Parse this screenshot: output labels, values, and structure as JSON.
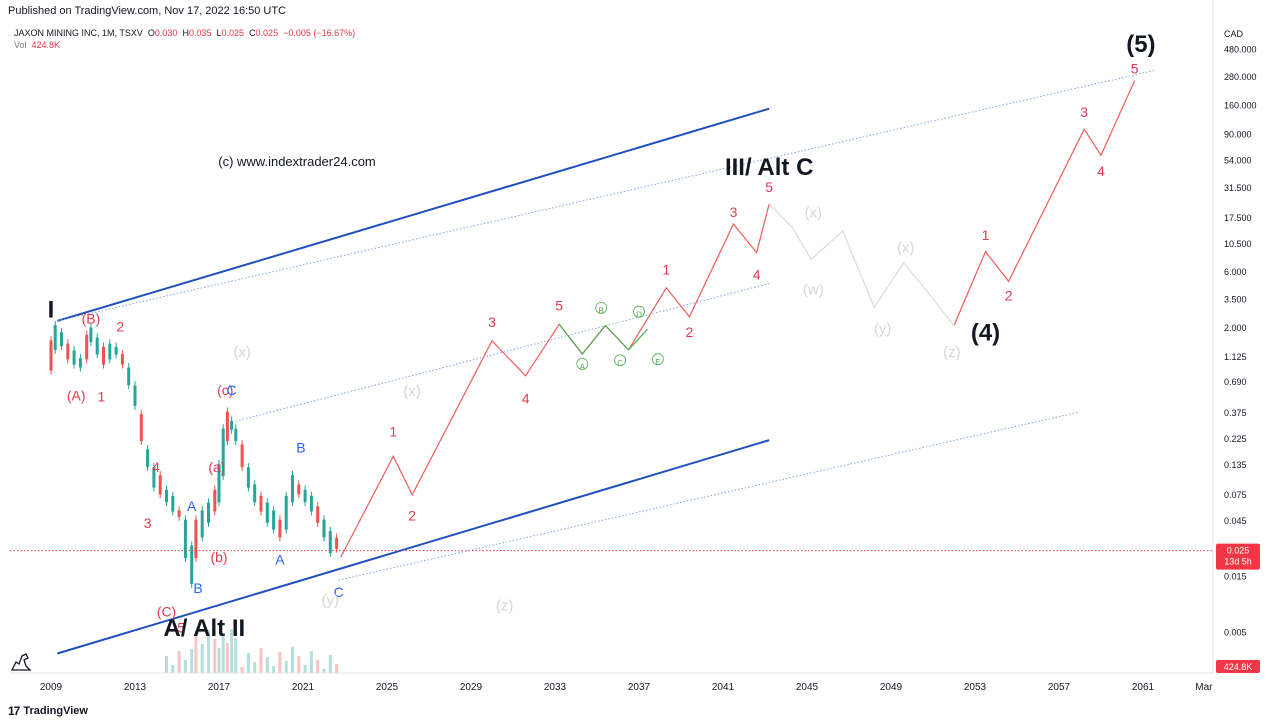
{
  "header": {
    "published": "Published on TradingView.com, Nov 17, 2022 16:50 UTC"
  },
  "legend": {
    "symbol": "JAXON MINING INC, 1M, TSXV",
    "o_label": "O",
    "o_value": "0.030",
    "h_label": "H",
    "h_value": "0.035",
    "l_label": "L",
    "l_value": "0.025",
    "c_label": "C",
    "c_value": "0.025",
    "change": "−0.005 (−16.67%)",
    "vol_label": "Vol",
    "vol_value": "424.8K"
  },
  "watermark": "(c) www.indextrader24.com",
  "footer": {
    "logo": "17",
    "brand": "TradingView"
  },
  "colors": {
    "channel": "#1e4fbf",
    "channel_dotted": "#7ea3e6",
    "projection": "#f05b5b",
    "triangle": "#4caf50",
    "wxy": "#dadada",
    "wave_red": "#e53950",
    "wave_blue": "#2962ff",
    "candle_up": "#26a69a",
    "candle_down": "#ef5350",
    "price_line": "#e53950"
  },
  "chart_data": {
    "type": "line",
    "title": "JAXON MINING INC, 1M, TSXV",
    "currency": "CAD",
    "scale": "log",
    "ylim": [
      0.0035,
      600
    ],
    "y_ticks": [
      "480.000",
      "280.000",
      "160.000",
      "90.000",
      "54.000",
      "31.500",
      "17.500",
      "10.500",
      "6.000",
      "3.500",
      "2.000",
      "1.125",
      "0.690",
      "0.375",
      "0.225",
      "0.135",
      "0.075",
      "0.045",
      "0.015",
      "0.005"
    ],
    "x_ticks": [
      "2009",
      "2013",
      "2017",
      "2021",
      "2025",
      "2029",
      "2033",
      "2037",
      "2041",
      "2045",
      "2049",
      "2053",
      "2057",
      "2061",
      "Mar"
    ],
    "xlim": [
      2009,
      2064
    ],
    "last_price": "0.025",
    "last_price_countdown": "13d 5h",
    "volume_label": "424.8K",
    "series": [
      {
        "name": "",
        "style": "projection",
        "x": [
          2022.8,
          2025.3,
          2026.2,
          2030.0,
          2031.6,
          2033.2,
          2034.3,
          2035.4,
          2036.5,
          2038.3,
          2039.4,
          2041.5,
          2042.6,
          2043.2
        ],
        "y": [
          0.022,
          0.16,
          0.075,
          1.55,
          0.78,
          2.15,
          1.2,
          2.1,
          1.3,
          4.4,
          2.5,
          15.5,
          8.8,
          23
        ]
      },
      {
        "name": "",
        "style": "projection",
        "x": [
          2052.0,
          2053.5,
          2054.6,
          2058.2,
          2059.0,
          2060.6
        ],
        "y": [
          2.1,
          9.0,
          5.0,
          100,
          60,
          260
        ]
      },
      {
        "name": "",
        "style": "triangle",
        "x": [
          2033.2,
          2034.3,
          2035.4,
          2036.5,
          2037.4
        ],
        "y": [
          2.15,
          1.2,
          2.1,
          1.3,
          1.95
        ]
      },
      {
        "name": "",
        "style": "wxy",
        "x": [
          2043.2,
          2044.3,
          2045.2,
          2046.7,
          2048.2,
          2049.6,
          2050.5,
          2052.0
        ],
        "y": [
          23,
          14.5,
          7.7,
          13.5,
          3.0,
          7.2,
          4.6,
          2.1
        ]
      }
    ],
    "labels": [
      {
        "text": "I",
        "x": 2009.0,
        "y": 2.9,
        "style": "big"
      },
      {
        "text": "(B)",
        "x": 2010.9,
        "y": 2.4,
        "style": "red"
      },
      {
        "text": "2",
        "x": 2012.3,
        "y": 2.05,
        "style": "red"
      },
      {
        "text": "(A)",
        "x": 2010.2,
        "y": 0.53,
        "style": "red"
      },
      {
        "text": "1",
        "x": 2011.4,
        "y": 0.52,
        "style": "red"
      },
      {
        "text": "4",
        "x": 2014.0,
        "y": 0.13,
        "style": "red"
      },
      {
        "text": "3",
        "x": 2013.6,
        "y": 0.043,
        "style": "red"
      },
      {
        "text": "A",
        "x": 2015.7,
        "y": 0.06,
        "style": "blue"
      },
      {
        "text": "(a)",
        "x": 2016.9,
        "y": 0.13,
        "style": "red"
      },
      {
        "text": "(c)",
        "x": 2017.3,
        "y": 0.59,
        "style": "red"
      },
      {
        "text": "C",
        "x": 2017.6,
        "y": 0.59,
        "style": "blue"
      },
      {
        "text": "(b)",
        "x": 2017.0,
        "y": 0.022,
        "style": "red"
      },
      {
        "text": "B",
        "x": 2016.0,
        "y": 0.012,
        "style": "blue"
      },
      {
        "text": "(C)",
        "x": 2014.5,
        "y": 0.0075,
        "style": "red"
      },
      {
        "text": "5",
        "x": 2015.2,
        "y": 0.0055,
        "style": "red"
      },
      {
        "text": "A/ Alt II",
        "x": 2016.3,
        "y": 0.0055,
        "style": "big"
      },
      {
        "text": "B",
        "x": 2020.9,
        "y": 0.19,
        "style": "blue"
      },
      {
        "text": "A",
        "x": 2019.9,
        "y": 0.021,
        "style": "blue"
      },
      {
        "text": "C",
        "x": 2022.7,
        "y": 0.011,
        "style": "blue"
      },
      {
        "text": "(y)",
        "x": 2022.3,
        "y": 0.0095,
        "style": "grey"
      },
      {
        "text": "(x)",
        "x": 2018.1,
        "y": 1.25,
        "style": "grey"
      },
      {
        "text": "(x)",
        "x": 2026.2,
        "y": 0.58,
        "style": "grey"
      },
      {
        "text": "(z)",
        "x": 2030.6,
        "y": 0.0085,
        "style": "grey"
      },
      {
        "text": "1",
        "x": 2025.3,
        "y": 0.26,
        "style": "red"
      },
      {
        "text": "2",
        "x": 2026.2,
        "y": 0.05,
        "style": "red"
      },
      {
        "text": "3",
        "x": 2030.0,
        "y": 2.25,
        "style": "red"
      },
      {
        "text": "4",
        "x": 2031.6,
        "y": 0.5,
        "style": "red"
      },
      {
        "text": "5",
        "x": 2033.2,
        "y": 3.1,
        "style": "red"
      },
      {
        "text": "1",
        "x": 2038.3,
        "y": 6.3,
        "style": "red"
      },
      {
        "text": "2",
        "x": 2039.4,
        "y": 1.85,
        "style": "red"
      },
      {
        "text": "3",
        "x": 2041.5,
        "y": 19.5,
        "style": "red"
      },
      {
        "text": "4",
        "x": 2042.6,
        "y": 5.7,
        "style": "red"
      },
      {
        "text": "5",
        "x": 2043.2,
        "y": 32,
        "style": "red"
      },
      {
        "text": "III/ Alt C",
        "x": 2043.2,
        "y": 48,
        "style": "big"
      },
      {
        "text": "(x)",
        "x": 2045.3,
        "y": 19.5,
        "style": "grey"
      },
      {
        "text": "(w)",
        "x": 2045.3,
        "y": 4.3,
        "style": "grey"
      },
      {
        "text": "(x)",
        "x": 2049.7,
        "y": 9.8,
        "style": "grey"
      },
      {
        "text": "(y)",
        "x": 2048.6,
        "y": 2.0,
        "style": "grey"
      },
      {
        "text": "(z)",
        "x": 2051.9,
        "y": 1.25,
        "style": "grey"
      },
      {
        "text": "(4)",
        "x": 2053.5,
        "y": 1.85,
        "style": "big"
      },
      {
        "text": "1",
        "x": 2053.5,
        "y": 12.5,
        "style": "red"
      },
      {
        "text": "2",
        "x": 2054.6,
        "y": 3.8,
        "style": "red"
      },
      {
        "text": "3",
        "x": 2058.2,
        "y": 140,
        "style": "red"
      },
      {
        "text": "4",
        "x": 2059.0,
        "y": 44,
        "style": "red"
      },
      {
        "text": "5",
        "x": 2060.6,
        "y": 330,
        "style": "red"
      },
      {
        "text": "(5)",
        "x": 2060.9,
        "y": 540,
        "style": "big"
      },
      {
        "text": "A",
        "x": 2034.3,
        "y": 0.93,
        "style": "green"
      },
      {
        "text": "B",
        "x": 2035.2,
        "y": 2.8,
        "style": "green"
      },
      {
        "text": "C",
        "x": 2036.1,
        "y": 1.0,
        "style": "green"
      },
      {
        "text": "D",
        "x": 2037.0,
        "y": 2.6,
        "style": "green"
      },
      {
        "text": "E",
        "x": 2037.9,
        "y": 1.02,
        "style": "green"
      }
    ],
    "channels": [
      {
        "style": "solid",
        "x1": 2009.3,
        "y1": 0.0033,
        "x2": 2043.2,
        "y2": 0.22
      },
      {
        "style": "solid",
        "x1": 2009.3,
        "y1": 2.3,
        "x2": 2043.2,
        "y2": 150
      },
      {
        "style": "dotted",
        "x1": 2009.3,
        "y1": 2.3,
        "x2": 2061.6,
        "y2": 320
      },
      {
        "style": "dotted",
        "x1": 2017.8,
        "y1": 0.32,
        "x2": 2043.2,
        "y2": 4.8
      },
      {
        "style": "dotted",
        "x1": 2022.7,
        "y1": 0.014,
        "x2": 2057.9,
        "y2": 0.38
      }
    ]
  }
}
